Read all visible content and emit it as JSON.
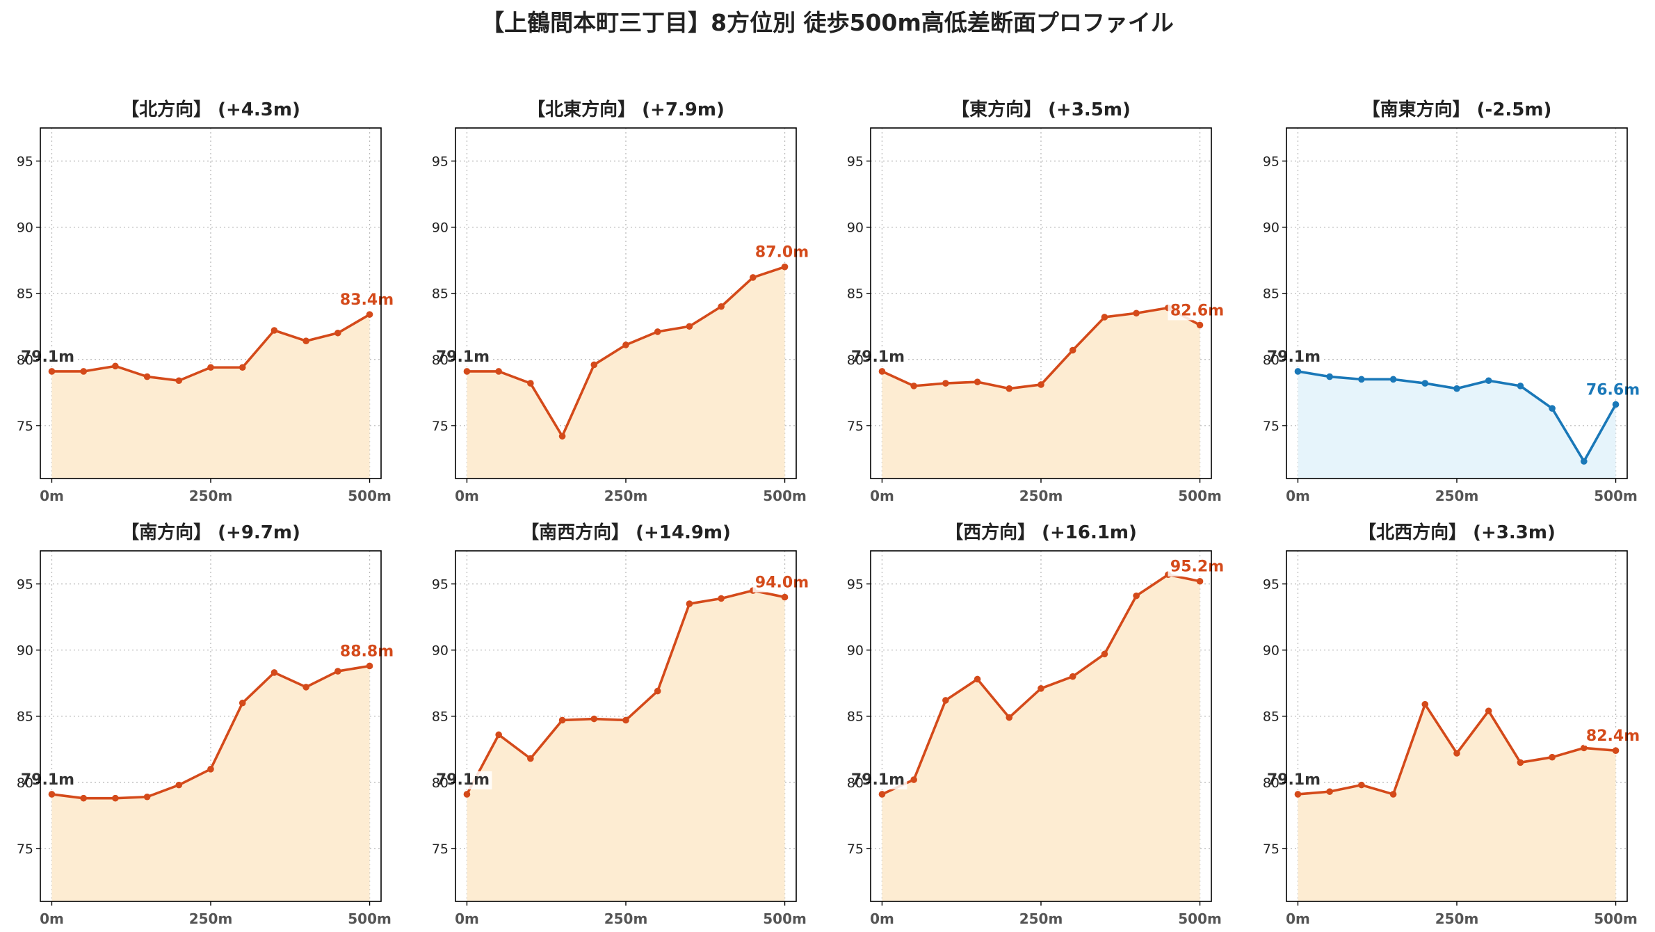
{
  "figure": {
    "title": "【上鶴間本町三丁目】8方位別 徒歩500m高低差断面プロファイル"
  },
  "colors": {
    "up_line": "#d44a1a",
    "up_fill": "#fdecd2",
    "down_line": "#1a78b8",
    "down_fill": "#e6f4fb",
    "start_text": "#333333"
  },
  "chart_data": [
    {
      "type": "area",
      "title": "【北方向】 (+4.3m)",
      "x": [
        0,
        50,
        100,
        150,
        200,
        250,
        300,
        350,
        400,
        450,
        500
      ],
      "values": [
        79.1,
        79.1,
        79.5,
        78.7,
        78.4,
        79.4,
        79.4,
        82.2,
        81.4,
        82.0,
        83.4
      ],
      "trend": "up",
      "start_label": "79.1m",
      "end_label": "83.4m",
      "xticks": [
        "0m",
        "250m",
        "500m"
      ],
      "xtick_values": [
        0,
        250,
        500
      ],
      "yticks": [
        "75",
        "80",
        "85",
        "90",
        "95"
      ],
      "ytick_values": [
        75,
        80,
        85,
        90,
        95
      ],
      "ylim": [
        71,
        97.5
      ],
      "xlim": [
        -18,
        518
      ],
      "grid": true
    },
    {
      "type": "area",
      "title": "【北東方向】 (+7.9m)",
      "x": [
        0,
        50,
        100,
        150,
        200,
        250,
        300,
        350,
        400,
        450,
        500
      ],
      "values": [
        79.1,
        79.1,
        78.2,
        74.2,
        79.6,
        81.1,
        82.1,
        82.5,
        84.0,
        86.2,
        87.0
      ],
      "trend": "up",
      "start_label": "79.1m",
      "end_label": "87.0m",
      "xticks": [
        "0m",
        "250m",
        "500m"
      ],
      "xtick_values": [
        0,
        250,
        500
      ],
      "yticks": [
        "75",
        "80",
        "85",
        "90",
        "95"
      ],
      "ytick_values": [
        75,
        80,
        85,
        90,
        95
      ],
      "ylim": [
        71,
        97.5
      ],
      "xlim": [
        -18,
        518
      ],
      "grid": true
    },
    {
      "type": "area",
      "title": "【東方向】 (+3.5m)",
      "x": [
        0,
        50,
        100,
        150,
        200,
        250,
        300,
        350,
        400,
        450,
        500
      ],
      "values": [
        79.1,
        78.0,
        78.2,
        78.3,
        77.8,
        78.1,
        80.7,
        83.2,
        83.5,
        83.9,
        82.6
      ],
      "trend": "up",
      "start_label": "79.1m",
      "end_label": "82.6m",
      "xticks": [
        "0m",
        "250m",
        "500m"
      ],
      "xtick_values": [
        0,
        250,
        500
      ],
      "yticks": [
        "75",
        "80",
        "85",
        "90",
        "95"
      ],
      "ytick_values": [
        75,
        80,
        85,
        90,
        95
      ],
      "ylim": [
        71,
        97.5
      ],
      "xlim": [
        -18,
        518
      ],
      "grid": true
    },
    {
      "type": "area",
      "title": "【南東方向】 (-2.5m)",
      "x": [
        0,
        50,
        100,
        150,
        200,
        250,
        300,
        350,
        400,
        450,
        500
      ],
      "values": [
        79.1,
        78.7,
        78.5,
        78.5,
        78.2,
        77.8,
        78.4,
        78.0,
        76.3,
        72.3,
        76.6
      ],
      "trend": "down",
      "start_label": "79.1m",
      "end_label": "76.6m",
      "xticks": [
        "0m",
        "250m",
        "500m"
      ],
      "xtick_values": [
        0,
        250,
        500
      ],
      "yticks": [
        "75",
        "80",
        "85",
        "90",
        "95"
      ],
      "ytick_values": [
        75,
        80,
        85,
        90,
        95
      ],
      "ylim": [
        71,
        97.5
      ],
      "xlim": [
        -18,
        518
      ],
      "grid": true
    },
    {
      "type": "area",
      "title": "【南方向】 (+9.7m)",
      "x": [
        0,
        50,
        100,
        150,
        200,
        250,
        300,
        350,
        400,
        450,
        500
      ],
      "values": [
        79.1,
        78.8,
        78.8,
        78.9,
        79.8,
        81.0,
        86.0,
        88.3,
        87.2,
        88.4,
        88.8
      ],
      "trend": "up",
      "start_label": "79.1m",
      "end_label": "88.8m",
      "xticks": [
        "0m",
        "250m",
        "500m"
      ],
      "xtick_values": [
        0,
        250,
        500
      ],
      "yticks": [
        "75",
        "80",
        "85",
        "90",
        "95"
      ],
      "ytick_values": [
        75,
        80,
        85,
        90,
        95
      ],
      "ylim": [
        71,
        97.5
      ],
      "xlim": [
        -18,
        518
      ],
      "grid": true
    },
    {
      "type": "area",
      "title": "【南西方向】 (+14.9m)",
      "x": [
        0,
        50,
        100,
        150,
        200,
        250,
        300,
        350,
        400,
        450,
        500
      ],
      "values": [
        79.1,
        83.6,
        81.8,
        84.7,
        84.8,
        84.7,
        86.9,
        93.5,
        93.9,
        94.5,
        94.0
      ],
      "trend": "up",
      "start_label": "79.1m",
      "end_label": "94.0m",
      "xticks": [
        "0m",
        "250m",
        "500m"
      ],
      "xtick_values": [
        0,
        250,
        500
      ],
      "yticks": [
        "75",
        "80",
        "85",
        "90",
        "95"
      ],
      "ytick_values": [
        75,
        80,
        85,
        90,
        95
      ],
      "ylim": [
        71,
        97.5
      ],
      "xlim": [
        -18,
        518
      ],
      "grid": true
    },
    {
      "type": "area",
      "title": "【西方向】 (+16.1m)",
      "x": [
        0,
        50,
        100,
        150,
        200,
        250,
        300,
        350,
        400,
        450,
        500
      ],
      "values": [
        79.1,
        80.2,
        86.2,
        87.8,
        84.9,
        87.1,
        88.0,
        89.7,
        94.1,
        95.7,
        95.2
      ],
      "trend": "up",
      "start_label": "79.1m",
      "end_label": "95.2m",
      "xticks": [
        "0m",
        "250m",
        "500m"
      ],
      "xtick_values": [
        0,
        250,
        500
      ],
      "yticks": [
        "75",
        "80",
        "85",
        "90",
        "95"
      ],
      "ytick_values": [
        75,
        80,
        85,
        90,
        95
      ],
      "ylim": [
        71,
        97.5
      ],
      "xlim": [
        -18,
        518
      ],
      "grid": true
    },
    {
      "type": "area",
      "title": "【北西方向】 (+3.3m)",
      "x": [
        0,
        50,
        100,
        150,
        200,
        250,
        300,
        350,
        400,
        450,
        500
      ],
      "values": [
        79.1,
        79.3,
        79.8,
        79.1,
        85.9,
        82.2,
        85.4,
        81.5,
        81.9,
        82.6,
        82.4
      ],
      "trend": "up",
      "start_label": "79.1m",
      "end_label": "82.4m",
      "xticks": [
        "0m",
        "250m",
        "500m"
      ],
      "xtick_values": [
        0,
        250,
        500
      ],
      "yticks": [
        "75",
        "80",
        "85",
        "90",
        "95"
      ],
      "ytick_values": [
        75,
        80,
        85,
        90,
        95
      ],
      "ylim": [
        71,
        97.5
      ],
      "xlim": [
        -18,
        518
      ],
      "grid": true
    }
  ]
}
